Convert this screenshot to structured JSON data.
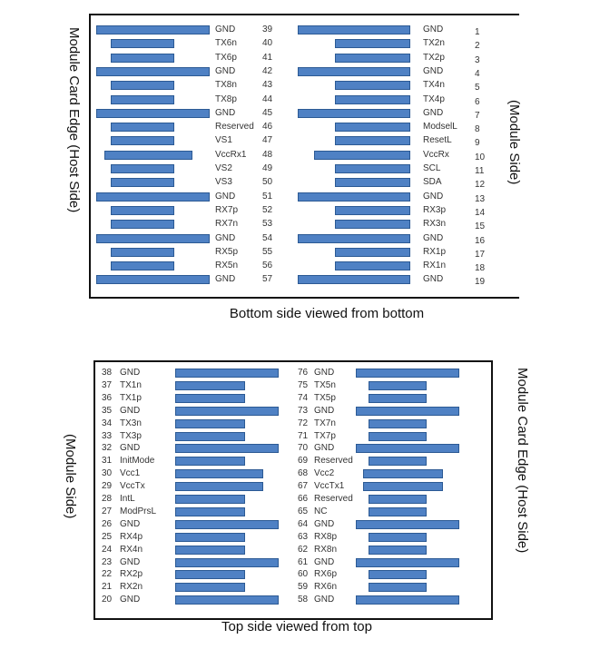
{
  "colors": {
    "bar": "#4f81c4",
    "bar_border": "#2c5a94"
  },
  "bottom_side": {
    "caption": "Bottom side viewed from bottom",
    "left_label": "Module Card Edge (Host Side)",
    "right_label": "(Module Side)",
    "left_pins": [
      [
        "39",
        "GND",
        "long"
      ],
      [
        "40",
        "TX6n",
        "short"
      ],
      [
        "41",
        "TX6p",
        "short"
      ],
      [
        "42",
        "GND",
        "long"
      ],
      [
        "43",
        "TX8n",
        "short"
      ],
      [
        "44",
        "TX8p",
        "short"
      ],
      [
        "45",
        "GND",
        "long"
      ],
      [
        "46",
        "Reserved",
        "short"
      ],
      [
        "47",
        "VS1",
        "short"
      ],
      [
        "48",
        "VccRx1",
        "medium"
      ],
      [
        "49",
        "VS2",
        "short"
      ],
      [
        "50",
        "VS3",
        "short"
      ],
      [
        "51",
        "GND",
        "long"
      ],
      [
        "52",
        "RX7p",
        "short"
      ],
      [
        "53",
        "RX7n",
        "short"
      ],
      [
        "54",
        "GND",
        "long"
      ],
      [
        "55",
        "RX5p",
        "short"
      ],
      [
        "56",
        "RX5n",
        "short"
      ],
      [
        "57",
        "GND",
        "long"
      ]
    ],
    "right_pins": [
      [
        "1",
        "GND",
        "long"
      ],
      [
        "2",
        "TX2n",
        "short"
      ],
      [
        "3",
        "TX2p",
        "short"
      ],
      [
        "4",
        "GND",
        "long"
      ],
      [
        "5",
        "TX4n",
        "short"
      ],
      [
        "6",
        "TX4p",
        "short"
      ],
      [
        "7",
        "GND",
        "long"
      ],
      [
        "8",
        "ModselL",
        "short"
      ],
      [
        "9",
        "ResetL",
        "short"
      ],
      [
        "10",
        "VccRx",
        "medium"
      ],
      [
        "11",
        "SCL",
        "short"
      ],
      [
        "12",
        "SDA",
        "short"
      ],
      [
        "13",
        "GND",
        "long"
      ],
      [
        "14",
        "RX3p",
        "short"
      ],
      [
        "15",
        "RX3n",
        "short"
      ],
      [
        "16",
        "GND",
        "long"
      ],
      [
        "17",
        "RX1p",
        "short"
      ],
      [
        "18",
        "RX1n",
        "short"
      ],
      [
        "19",
        "GND",
        "long"
      ]
    ]
  },
  "top_side": {
    "caption": "Top side viewed from top",
    "left_label": "(Module Side)",
    "right_label": "Module Card Edge (Host Side)",
    "left_pins": [
      [
        "38",
        "GND",
        "long"
      ],
      [
        "37",
        "TX1n",
        "short"
      ],
      [
        "36",
        "TX1p",
        "short"
      ],
      [
        "35",
        "GND",
        "long"
      ],
      [
        "34",
        "TX3n",
        "short"
      ],
      [
        "33",
        "TX3p",
        "short"
      ],
      [
        "32",
        "GND",
        "long"
      ],
      [
        "31",
        "InitMode",
        "short"
      ],
      [
        "30",
        "Vcc1",
        "medium"
      ],
      [
        "29",
        "VccTx",
        "medium"
      ],
      [
        "28",
        "IntL",
        "short"
      ],
      [
        "27",
        "ModPrsL",
        "short"
      ],
      [
        "26",
        "GND",
        "long"
      ],
      [
        "25",
        "RX4p",
        "short"
      ],
      [
        "24",
        "RX4n",
        "short"
      ],
      [
        "23",
        "GND",
        "long"
      ],
      [
        "22",
        "RX2p",
        "short"
      ],
      [
        "21",
        "RX2n",
        "short"
      ],
      [
        "20",
        "GND",
        "long"
      ]
    ],
    "right_pins": [
      [
        "76",
        "GND",
        "long"
      ],
      [
        "75",
        "TX5n",
        "short"
      ],
      [
        "74",
        "TX5p",
        "short"
      ],
      [
        "73",
        "GND",
        "long"
      ],
      [
        "72",
        "TX7n",
        "short"
      ],
      [
        "71",
        "TX7p",
        "short"
      ],
      [
        "70",
        "GND",
        "long"
      ],
      [
        "69",
        "Reserved",
        "short"
      ],
      [
        "68",
        "Vcc2",
        "medium"
      ],
      [
        "67",
        "VccTx1",
        "medium"
      ],
      [
        "66",
        "Reserved",
        "short"
      ],
      [
        "65",
        "NC",
        "short"
      ],
      [
        "64",
        "GND",
        "long"
      ],
      [
        "63",
        "RX8p",
        "short"
      ],
      [
        "62",
        "RX8n",
        "short"
      ],
      [
        "61",
        "GND",
        "long"
      ],
      [
        "60",
        "RX6p",
        "short"
      ],
      [
        "59",
        "RX6n",
        "short"
      ],
      [
        "58",
        "GND",
        "long"
      ]
    ]
  }
}
